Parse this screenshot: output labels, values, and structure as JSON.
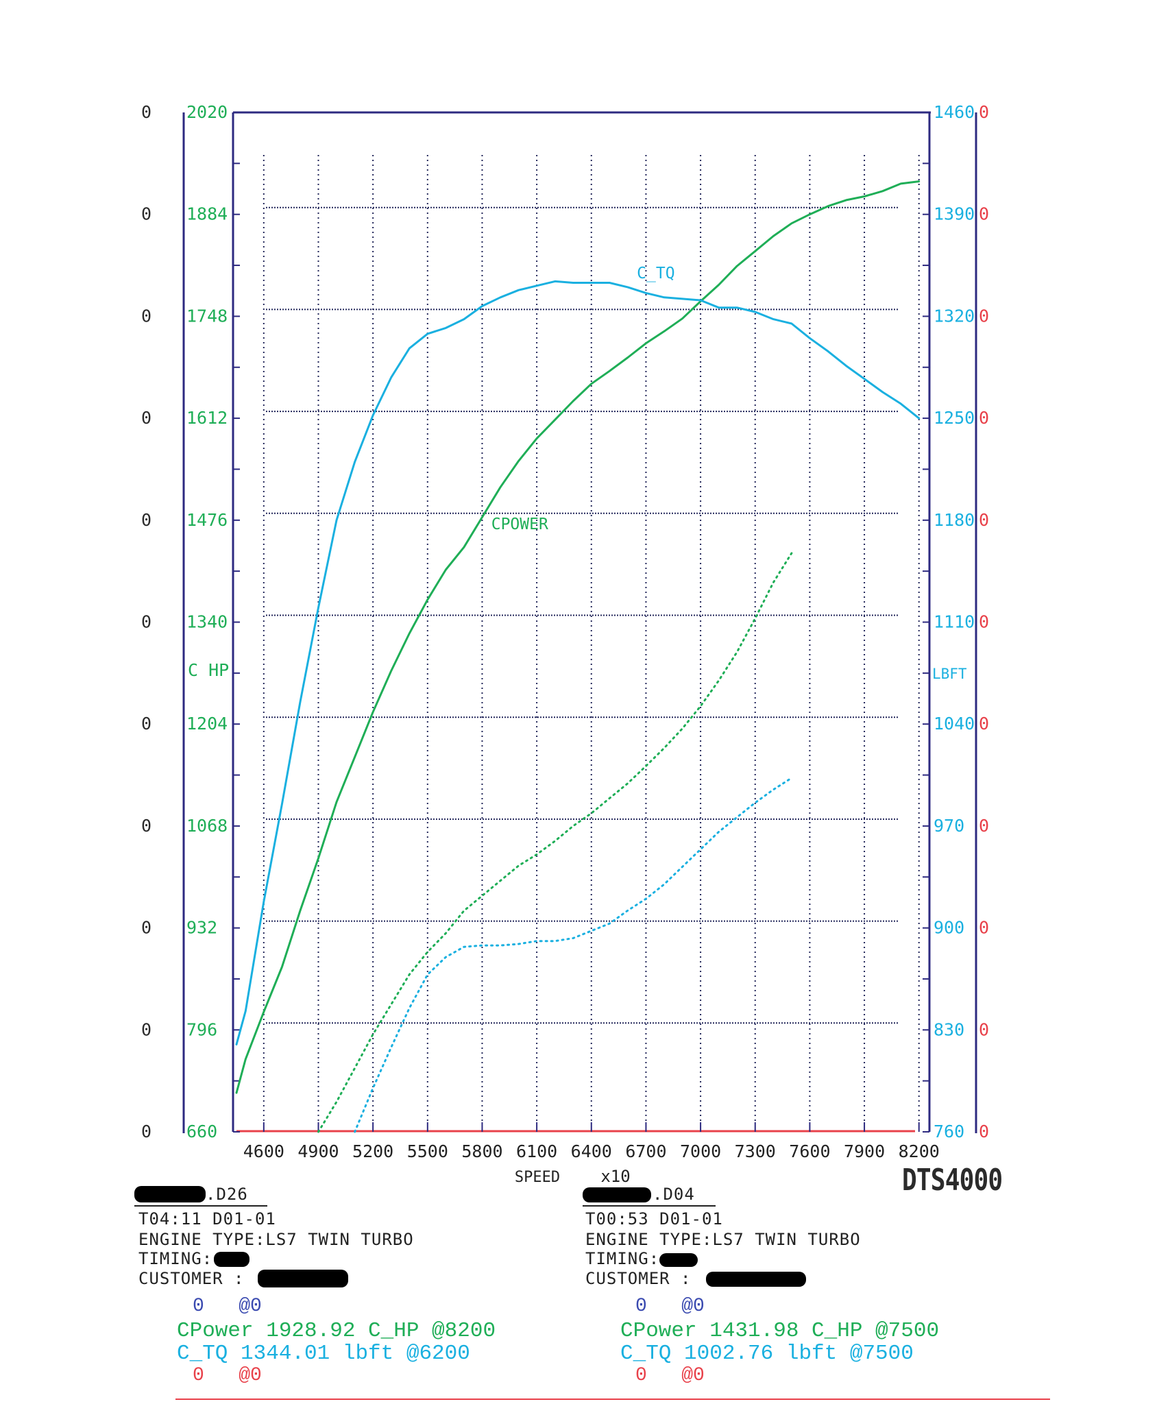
{
  "chart_data": {
    "type": "line",
    "xlabel": "SPEED",
    "xunit": "x10",
    "x_ticks": [
      "4600",
      "4900",
      "5200",
      "5500",
      "5800",
      "6100",
      "6400",
      "6700",
      "7000",
      "7300",
      "7600",
      "7900",
      "8200"
    ],
    "xlim": [
      4450,
      8250
    ],
    "left_axis": {
      "label": "C HP",
      "ylim": [
        660,
        2020
      ],
      "ticks": [
        "660",
        "796",
        "932",
        "1068",
        "1204",
        "1340",
        "1476",
        "1612",
        "1748",
        "1884",
        "2020"
      ],
      "zero_ticks": [
        "0",
        "0",
        "0",
        "0",
        "0",
        "0",
        "0",
        "0",
        "0",
        "0",
        "0"
      ]
    },
    "right_axis": {
      "label": "LBFT",
      "ylim": [
        760,
        1460
      ],
      "ticks": [
        "760",
        "830",
        "900",
        "970",
        "1040",
        "1110",
        "1180",
        "1250",
        "1320",
        "1390",
        "1460"
      ],
      "zero_ticks": [
        "0",
        "0",
        "0",
        "0",
        "0",
        "0",
        "0",
        "0",
        "0",
        "0",
        "0"
      ]
    },
    "annotations": [
      {
        "text": "C_TQ",
        "x": 6650,
        "y_right": 1346
      },
      {
        "text": "CPOWER",
        "x": 5850,
        "y_left": 1464
      }
    ],
    "series": [
      {
        "name": "CPower",
        "axis": "left",
        "color": "#1fae57",
        "style": "solid",
        "x": [
          4450,
          4500,
          4600,
          4700,
          4800,
          4900,
          5000,
          5100,
          5200,
          5300,
          5400,
          5500,
          5600,
          5700,
          5800,
          5900,
          6000,
          6100,
          6200,
          6300,
          6400,
          6500,
          6600,
          6700,
          6800,
          6900,
          7000,
          7100,
          7200,
          7300,
          7400,
          7500,
          7600,
          7700,
          7800,
          7900,
          8000,
          8100,
          8200
        ],
        "y": [
          712,
          757,
          820,
          880,
          955,
          1025,
          1100,
          1160,
          1220,
          1275,
          1325,
          1370,
          1410,
          1440,
          1480,
          1520,
          1555,
          1585,
          1610,
          1635,
          1658,
          1675,
          1693,
          1712,
          1728,
          1745,
          1768,
          1790,
          1815,
          1835,
          1855,
          1872,
          1884,
          1895,
          1903,
          1908,
          1915,
          1925,
          1928
        ]
      },
      {
        "name": "C_TQ",
        "axis": "right",
        "color": "#1ab0e0",
        "style": "solid",
        "x": [
          4450,
          4500,
          4600,
          4700,
          4800,
          4900,
          5000,
          5100,
          5200,
          5300,
          5400,
          5500,
          5600,
          5700,
          5800,
          5900,
          6000,
          6100,
          6200,
          6300,
          6400,
          6500,
          6600,
          6700,
          6800,
          6900,
          7000,
          7100,
          7200,
          7300,
          7400,
          7500,
          7600,
          7700,
          7800,
          7900,
          8000,
          8100,
          8200
        ],
        "y": [
          820,
          843,
          918,
          985,
          1055,
          1120,
          1180,
          1220,
          1252,
          1278,
          1298,
          1308,
          1312,
          1318,
          1327,
          1333,
          1338,
          1341,
          1344,
          1343,
          1343,
          1343,
          1340,
          1336,
          1333,
          1332,
          1331,
          1326,
          1326,
          1323,
          1318,
          1315,
          1305,
          1296,
          1286,
          1277,
          1268,
          1260,
          1250
        ]
      },
      {
        "name": "CPower",
        "axis": "left",
        "color": "#1fae57",
        "style": "dotted",
        "x": [
          4900,
          5000,
          5100,
          5200,
          5300,
          5400,
          5500,
          5600,
          5700,
          5800,
          5900,
          6000,
          6100,
          6200,
          6300,
          6400,
          6500,
          6600,
          6700,
          6800,
          6900,
          7000,
          7100,
          7200,
          7300,
          7400,
          7500
        ],
        "y": [
          660,
          700,
          745,
          790,
          830,
          870,
          900,
          925,
          955,
          975,
          995,
          1015,
          1030,
          1048,
          1068,
          1085,
          1105,
          1125,
          1148,
          1172,
          1198,
          1228,
          1262,
          1300,
          1345,
          1393,
          1432
        ]
      },
      {
        "name": "C_TQ",
        "axis": "right",
        "color": "#1ab0e0",
        "style": "dotted",
        "x": [
          5100,
          5200,
          5300,
          5400,
          5500,
          5600,
          5700,
          5800,
          5900,
          6000,
          6100,
          6200,
          6300,
          6400,
          6500,
          6600,
          6700,
          6800,
          6900,
          7000,
          7100,
          7200,
          7300,
          7400,
          7500
        ],
        "y": [
          760,
          790,
          818,
          845,
          868,
          880,
          887,
          888,
          888,
          889,
          891,
          891,
          893,
          898,
          903,
          912,
          920,
          930,
          942,
          954,
          966,
          976,
          986,
          995,
          1003
        ]
      }
    ],
    "baseline": {
      "color": "#e8414a",
      "y_left": 660
    },
    "grid": true
  },
  "model": "DTS4000",
  "runs": [
    {
      "file": ".D26",
      "time": "T04:11 D01-01",
      "engine_type_label": "ENGINE TYPE:",
      "engine_type": "LS7 TWIN TURBO",
      "timing_label": "TIMING:",
      "customer_label": "CUSTOMER :",
      "line_blue": "0   @0",
      "line_power": "CPower 1928.92 C_HP @8200",
      "line_torque": "C_TQ 1344.01 lbft @6200",
      "line_red": "0   @0"
    },
    {
      "file": ".D04",
      "time": "T00:53 D01-01",
      "engine_type_label": "ENGINE TYPE:",
      "engine_type": "LS7 TWIN TURBO",
      "timing_label": "TIMING:",
      "customer_label": "CUSTOMER :",
      "line_blue": "0   @0",
      "line_power": "CPower 1431.98 C_HP @7500",
      "line_torque": "C_TQ 1002.76 lbft @7500",
      "line_red": "0   @0"
    }
  ],
  "colors": {
    "frame": "#2d2a80",
    "grid": "#22265a",
    "power": "#1fae57",
    "torque": "#1ab0e0",
    "red": "#e8414a"
  }
}
